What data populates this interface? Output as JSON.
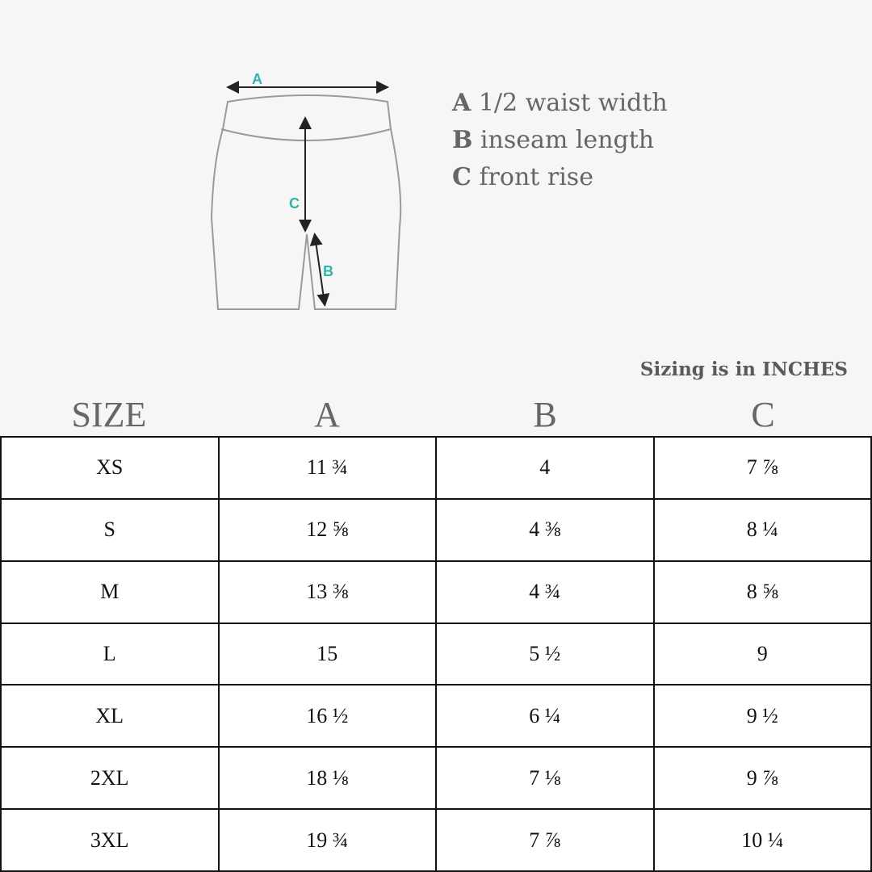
{
  "diagram": {
    "labels": {
      "a": "A",
      "b": "B",
      "c": "C"
    },
    "colors": {
      "outline": "#9a9a9a",
      "arrow": "#222222",
      "label": "#2bb5ab"
    }
  },
  "legend": [
    {
      "key": "A",
      "text": "1/2 waist width"
    },
    {
      "key": "B",
      "text": "inseam length"
    },
    {
      "key": "C",
      "text": "front rise"
    }
  ],
  "unit_note": "Sizing is in INCHES",
  "table": {
    "headers": [
      "SIZE",
      "A",
      "B",
      "C"
    ],
    "rows": [
      [
        "XS",
        "11 ¾",
        "4",
        "7 ⅞"
      ],
      [
        "S",
        "12 ⅝",
        "4 ⅜",
        "8 ¼"
      ],
      [
        "M",
        "13 ⅜",
        "4 ¾",
        "8 ⅝"
      ],
      [
        "L",
        "15",
        "5 ½",
        "9"
      ],
      [
        "XL",
        "16 ½",
        "6 ¼",
        "9 ½"
      ],
      [
        "2XL",
        "18 ⅛",
        "7 ⅛",
        "9 ⅞"
      ],
      [
        "3XL",
        "19 ¾",
        "7 ⅞",
        "10 ¼"
      ]
    ]
  }
}
